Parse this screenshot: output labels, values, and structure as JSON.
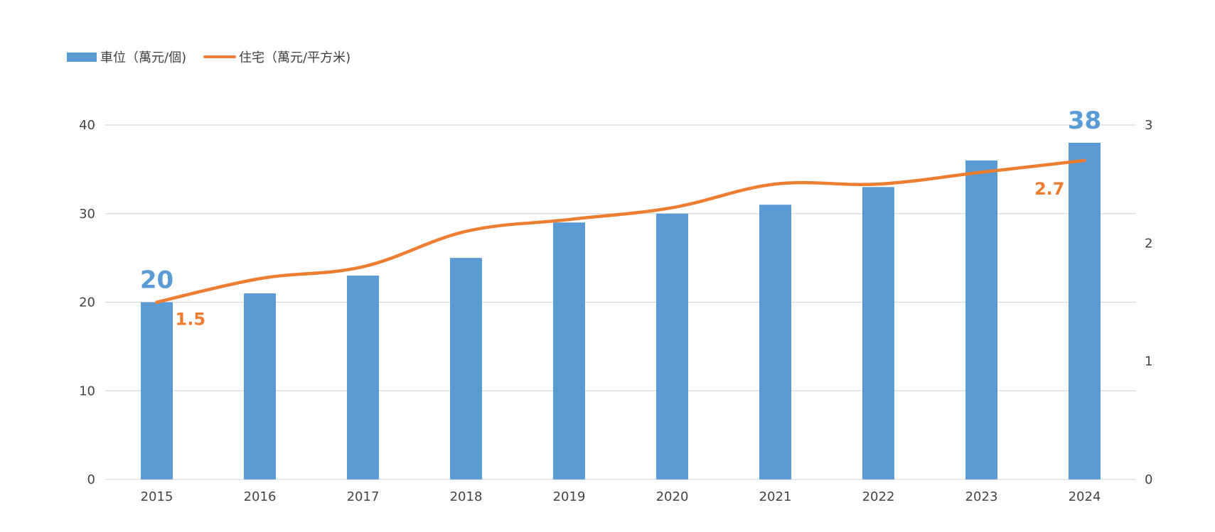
{
  "chart_data": {
    "type": "bar",
    "categories": [
      "2015",
      "2016",
      "2017",
      "2018",
      "2019",
      "2020",
      "2021",
      "2022",
      "2023",
      "2024"
    ],
    "series": [
      {
        "name": "車位（萬元/個)",
        "kind": "bar",
        "axis": "left",
        "values": [
          20,
          21,
          23,
          25,
          29,
          30,
          31,
          33,
          36,
          38
        ]
      },
      {
        "name": "住宅（萬元/平方米)",
        "kind": "line",
        "axis": "right",
        "smooth": true,
        "values": [
          1.5,
          1.7,
          1.8,
          2.1,
          2.2,
          2.3,
          2.5,
          2.5,
          2.6,
          2.7
        ]
      }
    ],
    "y_left": {
      "min": 0,
      "max": 40,
      "ticks": [
        "0",
        "10",
        "20",
        "30",
        "40"
      ]
    },
    "y_right": {
      "min": 0,
      "max": 3,
      "ticks": [
        "0",
        "1",
        "2",
        "3"
      ]
    },
    "annotations": {
      "bar_first": "20",
      "bar_last": "38",
      "line_first": "1.5",
      "line_last": "2.7"
    },
    "grid": true,
    "legend_position": "top-left",
    "colors": {
      "bar": "#5b9bd5",
      "line": "#ed7d31",
      "grid": "#d9d9d9"
    }
  }
}
